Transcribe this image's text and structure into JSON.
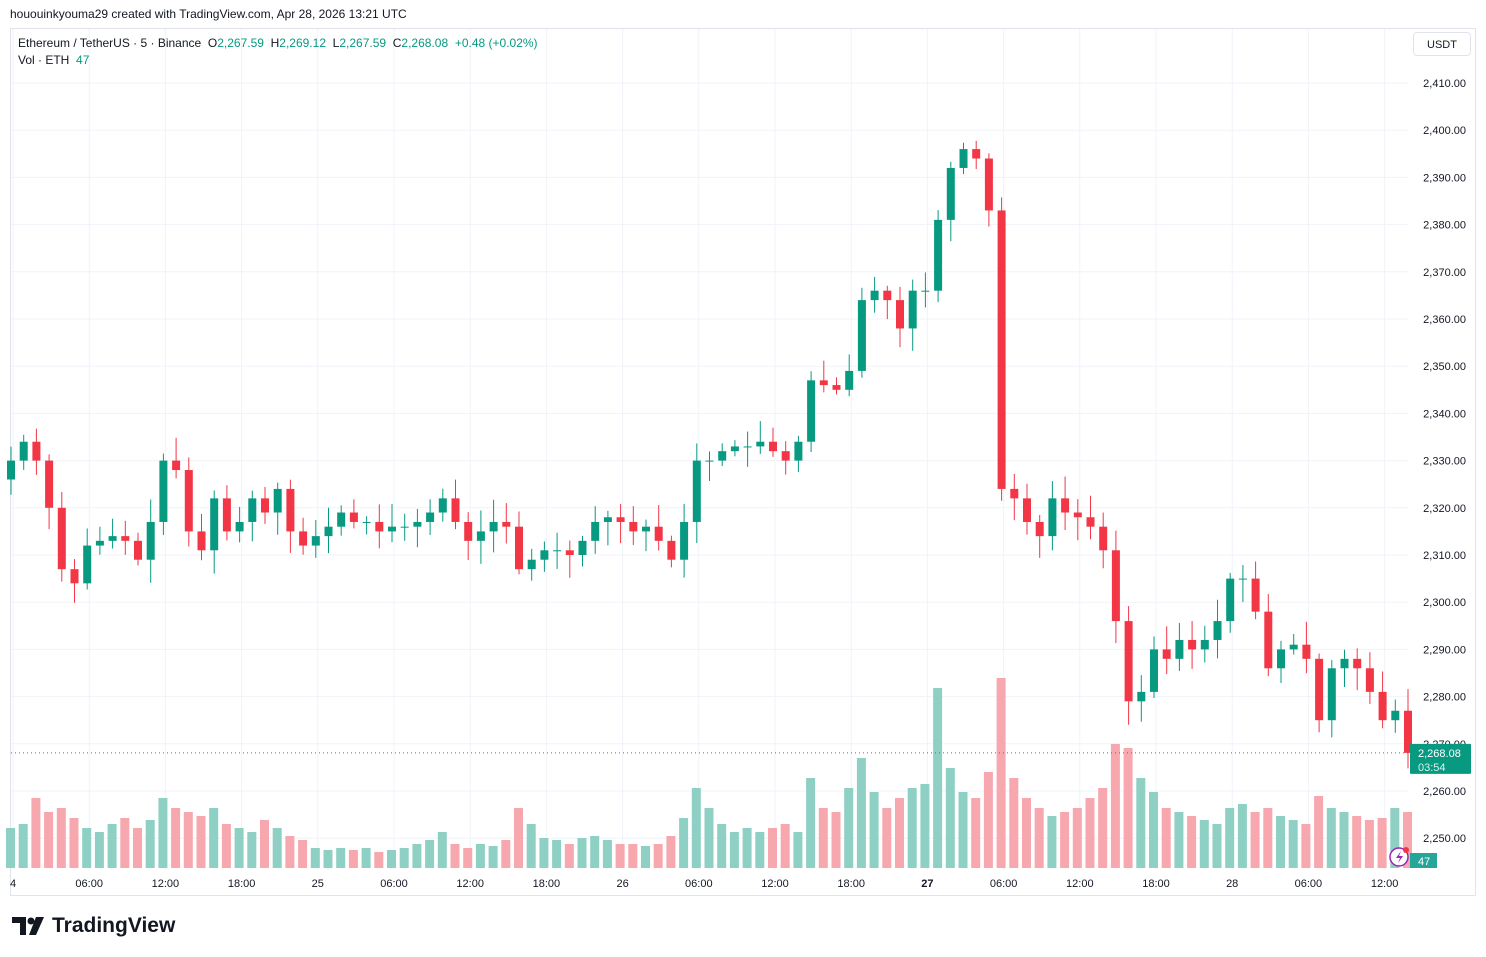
{
  "credit": "hououinkyouma29 created with TradingView.com, Apr 28, 2026 13:21 UTC",
  "legend": {
    "symbol": "Ethereum / TetherUS · 5 · Binance",
    "o_label": "O",
    "o": "2,267.59",
    "h_label": "H",
    "h": "2,269.12",
    "l_label": "L",
    "l": "2,267.59",
    "c_label": "C",
    "c": "2,268.08",
    "change": "+0.48 (+0.02%)",
    "vol_label": "Vol · ETH",
    "vol": "47"
  },
  "currency_button": "USDT",
  "last_price": {
    "value": "2,268.08",
    "countdown": "03:54",
    "volume_badge": "47"
  },
  "logo_text": "TradingView",
  "colors": {
    "up": "#089981",
    "down": "#f23645",
    "up_volume": "#8fd0c4",
    "down_volume": "#f7a8ae",
    "grid": "#f0f3fa"
  },
  "chart_data": {
    "type": "candlestick",
    "title": "Ethereum / TetherUS · 5 · Binance",
    "note_sampling": "approximate hourly closes read from chart",
    "y_axis": {
      "ylim": [
        2245,
        2415
      ],
      "ticks": [
        "2,410.00",
        "2,400.00",
        "2,390.00",
        "2,380.00",
        "2,370.00",
        "2,360.00",
        "2,350.00",
        "2,340.00",
        "2,330.00",
        "2,320.00",
        "2,310.00",
        "2,300.00",
        "2,290.00",
        "2,280.00",
        "2,270.00",
        "2,260.00",
        "2,250.00"
      ],
      "tick_values": [
        2410,
        2400,
        2390,
        2380,
        2370,
        2360,
        2350,
        2340,
        2330,
        2320,
        2310,
        2300,
        2290,
        2280,
        2270,
        2260,
        2250
      ]
    },
    "x_axis": {
      "start": "Apr 24 00:00",
      "ticks": [
        {
          "label": "4",
          "hour": 0
        },
        {
          "label": "06:00",
          "hour": 6
        },
        {
          "label": "12:00",
          "hour": 12
        },
        {
          "label": "18:00",
          "hour": 18
        },
        {
          "label": "25",
          "hour": 24
        },
        {
          "label": "06:00",
          "hour": 30
        },
        {
          "label": "12:00",
          "hour": 36
        },
        {
          "label": "18:00",
          "hour": 42
        },
        {
          "label": "26",
          "hour": 48
        },
        {
          "label": "06:00",
          "hour": 54
        },
        {
          "label": "12:00",
          "hour": 60
        },
        {
          "label": "18:00",
          "hour": 66
        },
        {
          "label": "27",
          "hour": 72,
          "bold": true
        },
        {
          "label": "06:00",
          "hour": 78
        },
        {
          "label": "12:00",
          "hour": 84
        },
        {
          "label": "18:00",
          "hour": 90
        },
        {
          "label": "28",
          "hour": 96
        },
        {
          "label": "06:00",
          "hour": 102
        },
        {
          "label": "12:00",
          "hour": 108
        }
      ]
    },
    "open_first": 2326,
    "closes": [
      2330,
      2334,
      2330,
      2320,
      2307,
      2304,
      2312,
      2313,
      2314,
      2313,
      2309,
      2317,
      2330,
      2328,
      2315,
      2311,
      2322,
      2315,
      2317,
      2322,
      2319,
      2324,
      2315,
      2312,
      2314,
      2316,
      2319,
      2317,
      2317,
      2315,
      2316,
      2316,
      2317,
      2319,
      2322,
      2317,
      2313,
      2315,
      2317,
      2316,
      2307,
      2309,
      2311,
      2311,
      2310,
      2313,
      2317,
      2318,
      2317,
      2315,
      2316,
      2313,
      2309,
      2317,
      2330,
      2330,
      2332,
      2333,
      2333,
      2334,
      2332,
      2330,
      2334,
      2347,
      2346,
      2345,
      2349,
      2364,
      2366,
      2364,
      2358,
      2366,
      2366,
      2381,
      2392,
      2396,
      2394,
      2383,
      2324,
      2322,
      2317,
      2314,
      2322,
      2319,
      2318,
      2316,
      2311,
      2296,
      2279,
      2281,
      2290,
      2288,
      2292,
      2290,
      2292,
      2296,
      2305,
      2305,
      2298,
      2286,
      2290,
      2291,
      2288,
      2275,
      2286,
      2288,
      2286,
      2281,
      2275,
      2277,
      2268.08
    ],
    "volumes": [
      20,
      22,
      35,
      28,
      30,
      25,
      20,
      18,
      22,
      25,
      20,
      24,
      35,
      30,
      28,
      26,
      30,
      22,
      20,
      18,
      24,
      20,
      16,
      14,
      10,
      9,
      10,
      9,
      10,
      8,
      9,
      10,
      12,
      14,
      18,
      12,
      10,
      12,
      11,
      14,
      30,
      22,
      15,
      14,
      12,
      15,
      16,
      14,
      12,
      12,
      11,
      12,
      16,
      25,
      40,
      30,
      22,
      18,
      20,
      18,
      20,
      22,
      18,
      45,
      30,
      28,
      40,
      55,
      38,
      30,
      35,
      40,
      42,
      90,
      50,
      38,
      35,
      48,
      95,
      45,
      35,
      30,
      26,
      28,
      30,
      35,
      40,
      62,
      60,
      45,
      38,
      30,
      28,
      26,
      24,
      22,
      30,
      32,
      28,
      30,
      26,
      24,
      22,
      36,
      30,
      28,
      26,
      24,
      25,
      30,
      28
    ]
  }
}
